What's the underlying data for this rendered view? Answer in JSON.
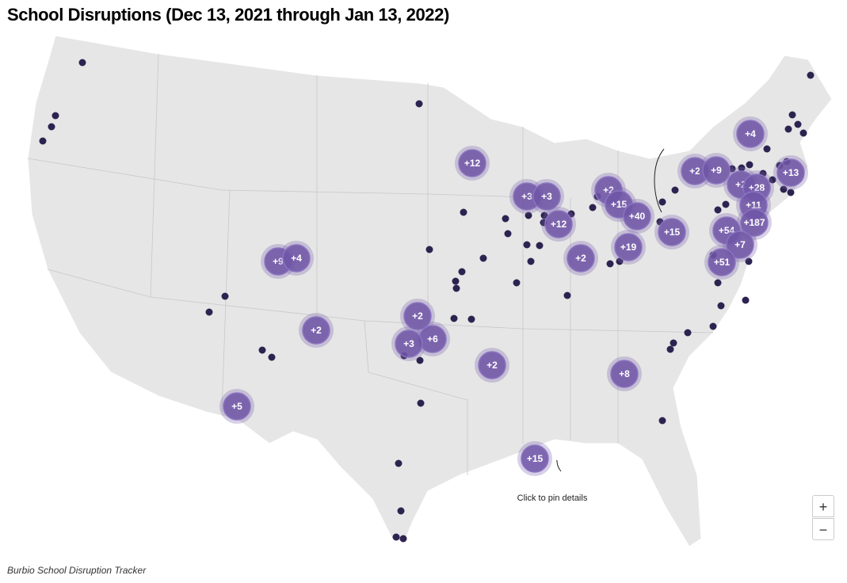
{
  "header": {
    "title": "School Disruptions (Dec 13, 2021 through Jan 13, 2022)"
  },
  "map": {
    "clusters": [
      "+4",
      "+12",
      "+2",
      "+9",
      "+13",
      "+2",
      "+28",
      "+3",
      "+3",
      "+2",
      "+15",
      "+11",
      "+40",
      "+12",
      "+187",
      "+54",
      "+15",
      "+7",
      "+9",
      "+4",
      "+2",
      "+19",
      "+51",
      "+2",
      "+2",
      "+6",
      "+3",
      "+2",
      "+8",
      "+5",
      "+15"
    ],
    "annotation": "Click to pin details"
  },
  "controls": {
    "zoom_in": "+",
    "zoom_out": "−"
  },
  "footer": {
    "source": "Burbio School Disruption Tracker"
  }
}
